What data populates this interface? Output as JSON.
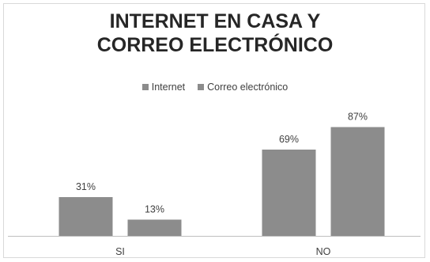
{
  "chart_data": {
    "type": "bar",
    "title_lines": [
      "INTERNET EN CASA Y",
      "CORREO ELECTRÓNICO"
    ],
    "categories": [
      "SI",
      "NO"
    ],
    "series": [
      {
        "name": "Internet",
        "values": [
          31,
          69
        ],
        "labels": [
          "31%",
          "69%"
        ]
      },
      {
        "name": "Correo electrónico",
        "values": [
          13,
          87
        ],
        "labels": [
          "13%",
          "87%"
        ]
      }
    ],
    "unit": "%",
    "ylim": [
      0,
      100
    ],
    "grid": false,
    "legend_position": "top",
    "colors": {
      "bar": "#8c8c8c",
      "axis": "#bfbfbf",
      "text": "#404040",
      "title": "#262626"
    }
  }
}
